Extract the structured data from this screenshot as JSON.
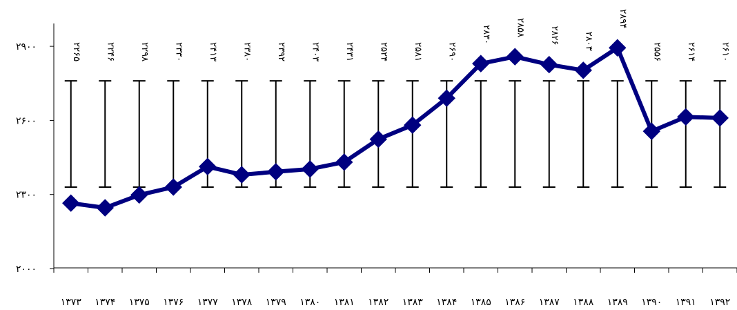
{
  "chart_data": {
    "type": "line",
    "title": "",
    "xlabel": "",
    "ylabel": "",
    "categories": [
      "۱۳۷۳",
      "۱۳۷۴",
      "۱۳۷۵",
      "۱۳۷۶",
      "۱۳۷۷",
      "۱۳۷۸",
      "۱۳۷۹",
      "۱۳۸۰",
      "۱۳۸۱",
      "۱۳۸۲",
      "۱۳۸۳",
      "۱۳۸۴",
      "۱۳۸۵",
      "۱۳۸۶",
      "۱۳۸۷",
      "۱۳۸۸",
      "۱۳۸۹",
      "۱۳۹۰",
      "۱۳۹۱",
      "۱۳۹۲"
    ],
    "series": [
      {
        "values": [
          2265,
          2246,
          2298,
          2330,
          2413,
          2380,
          2392,
          2403,
          2431,
          2524,
          2581,
          2690,
          2830,
          2858,
          2826,
          2803,
          2894,
          2556,
          2614,
          2610
        ],
        "color": "#000080"
      }
    ],
    "data_labels": [
      "۲۲۶۵",
      "۲۲۴۶",
      "۲۲۹۸",
      "۲۳۳۰",
      "۲۴۱۳",
      "۲۳۸۰",
      "۲۳۹۲",
      "۲۴۰۳",
      "۲۴۳۱",
      "۲۵۲۴",
      "۲۵۸۱",
      "۲۶۹۰",
      "۲۸۳۰",
      "۲۸۵۸",
      "۲۸۲۶",
      "۲۸۰۳",
      "۲۸۹۴",
      "۲۵۵۶",
      "۲۶۱۴",
      "۲۶۱۰"
    ],
    "ylim": [
      2000,
      3000
    ],
    "yticks": [
      2000,
      2300,
      2600,
      2900
    ],
    "ytick_labels": [
      "۲۰۰۰",
      "۲۳۰۰",
      "۲۶۰۰",
      "۲۹۰۰"
    ],
    "error_bar_range": [
      2330,
      2760
    ],
    "grid": false,
    "legend": "none"
  }
}
